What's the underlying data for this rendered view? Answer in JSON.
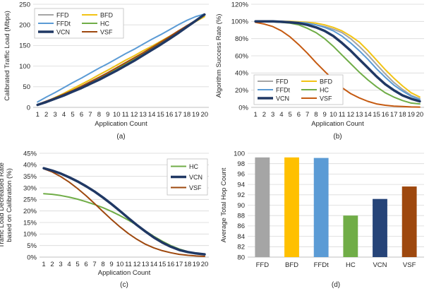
{
  "chart_data": [
    {
      "type": "line",
      "panel": "(a)",
      "xlabel": "Application Count",
      "ylabel": "Calibrated Traffic Load (Mbps)",
      "x": [
        1,
        2,
        3,
        4,
        5,
        6,
        7,
        8,
        9,
        10,
        11,
        12,
        13,
        14,
        15,
        16,
        17,
        18,
        19,
        20
      ],
      "ylim": [
        0,
        250
      ],
      "yticks": [
        "0",
        "50",
        "100",
        "150",
        "200",
        "250"
      ],
      "grid": "horizontal",
      "legend_position": "top-left",
      "series": [
        {
          "name": "FFD",
          "color": "#a5a5a5",
          "width": 2,
          "values": [
            5,
            14,
            24,
            34,
            45,
            56,
            67,
            79,
            90,
            102,
            114,
            125,
            137,
            148,
            160,
            172,
            184,
            196,
            208,
            220
          ]
        },
        {
          "name": "BFD",
          "color": "#f2c314",
          "width": 2,
          "values": [
            5,
            14,
            24,
            34,
            45,
            56,
            67,
            79,
            90,
            102,
            114,
            125,
            137,
            148,
            160,
            172,
            184,
            196,
            208,
            220
          ]
        },
        {
          "name": "FFDt",
          "color": "#5b9bd5",
          "width": 2,
          "values": [
            13,
            25,
            36,
            48,
            60,
            71,
            83,
            95,
            106,
            118,
            130,
            141,
            153,
            165,
            176,
            188,
            200,
            211,
            220,
            226
          ]
        },
        {
          "name": "HC",
          "color": "#70ad47",
          "width": 2,
          "values": [
            6,
            14,
            23,
            32,
            41,
            51,
            61,
            72,
            83,
            94,
            106,
            118,
            131,
            143,
            156,
            170,
            183,
            197,
            211,
            224
          ]
        },
        {
          "name": "VCN",
          "color": "#203864",
          "width": 3.5,
          "values": [
            6,
            13,
            21,
            29,
            38,
            47,
            57,
            67,
            78,
            89,
            101,
            113,
            126,
            139,
            152,
            166,
            180,
            195,
            210,
            225
          ]
        },
        {
          "name": "VSF",
          "color": "#9e480e",
          "width": 2,
          "values": [
            7,
            15,
            23,
            32,
            41,
            51,
            62,
            73,
            84,
            96,
            108,
            120,
            132,
            145,
            158,
            171,
            185,
            198,
            211,
            224
          ]
        }
      ]
    },
    {
      "type": "line",
      "panel": "(b)",
      "xlabel": "Application Count",
      "ylabel": "Algorithm Success Rate (%)",
      "x": [
        1,
        2,
        3,
        4,
        5,
        6,
        7,
        8,
        9,
        10,
        11,
        12,
        13,
        14,
        15,
        16,
        17,
        18,
        19,
        20
      ],
      "ylim": [
        0,
        120
      ],
      "yticks": [
        "0%",
        "20%",
        "40%",
        "60%",
        "80%",
        "100%",
        "120%"
      ],
      "grid": "horizontal",
      "legend_position": "bottom-left",
      "series": [
        {
          "name": "FFD",
          "color": "#a5a5a5",
          "width": 2,
          "values": [
            100,
            100,
            100,
            100,
            99.5,
            99,
            98,
            96,
            94,
            91,
            87,
            80,
            71,
            61,
            50,
            39,
            29,
            21,
            14,
            10
          ]
        },
        {
          "name": "BFD",
          "color": "#f2c314",
          "width": 2,
          "values": [
            100,
            100,
            100,
            100,
            100,
            99.5,
            99,
            98,
            96,
            93,
            89,
            83,
            76,
            66,
            55,
            44,
            34,
            25,
            17,
            12
          ]
        },
        {
          "name": "FFDt",
          "color": "#5b9bd5",
          "width": 2,
          "values": [
            100,
            100,
            100,
            100,
            99.5,
            99,
            98,
            96,
            93,
            89,
            83,
            75,
            66,
            56,
            45,
            35,
            26,
            19,
            13,
            9
          ]
        },
        {
          "name": "HC",
          "color": "#70ad47",
          "width": 2,
          "values": [
            100,
            100,
            99.5,
            99,
            98,
            96,
            92,
            87,
            80,
            71,
            61,
            51,
            41,
            32,
            24,
            17,
            12,
            8,
            5,
            4
          ]
        },
        {
          "name": "VCN",
          "color": "#203864",
          "width": 3.5,
          "values": [
            100,
            100,
            100,
            99.5,
            99,
            98,
            96,
            93,
            89,
            83,
            75,
            66,
            56,
            46,
            36,
            27,
            20,
            14,
            10,
            7
          ]
        },
        {
          "name": "VSF",
          "color": "#c55a11",
          "width": 2,
          "values": [
            99,
            97,
            94,
            89,
            82,
            73,
            63,
            52,
            42,
            32,
            23,
            16,
            11,
            7,
            4,
            2.5,
            1.5,
            1,
            0.5,
            0.3
          ]
        }
      ]
    },
    {
      "type": "line",
      "panel": "(c)",
      "xlabel": "Application Count",
      "ylabel": "Traffic Load Decreased Rate based on Calibration (%)",
      "x": [
        1,
        2,
        3,
        4,
        5,
        6,
        7,
        8,
        9,
        10,
        11,
        12,
        13,
        14,
        15,
        16,
        17,
        18,
        19,
        20
      ],
      "ylim": [
        0,
        45
      ],
      "yticks": [
        "0%",
        "5%",
        "10%",
        "15%",
        "20%",
        "25%",
        "30%",
        "35%",
        "40%",
        "45%"
      ],
      "grid": "horizontal",
      "legend_position": "top-right",
      "series": [
        {
          "name": "HC",
          "color": "#70ad47",
          "width": 2,
          "values": [
            27.5,
            27.2,
            26.7,
            26,
            25.1,
            24,
            22.8,
            21.4,
            19.8,
            18,
            16,
            13.8,
            11.4,
            9,
            6.9,
            5,
            3.5,
            2.4,
            1.6,
            1.2
          ]
        },
        {
          "name": "VCN",
          "color": "#203864",
          "width": 3.5,
          "values": [
            38.5,
            37.5,
            36.2,
            34.6,
            32.8,
            30.7,
            28.4,
            25.8,
            23,
            20,
            16.9,
            13.9,
            11.1,
            8.5,
            6.3,
            4.5,
            3.1,
            2.2,
            1.6,
            1.2
          ]
        },
        {
          "name": "VSF",
          "color": "#9e480e",
          "width": 2,
          "values": [
            38.3,
            36.9,
            34.9,
            32.5,
            29.7,
            26.6,
            23.2,
            19.7,
            16.3,
            13.1,
            10.2,
            7.7,
            5.6,
            4,
            2.8,
            1.9,
            1.2,
            0.8,
            0.5,
            0.3
          ]
        }
      ]
    },
    {
      "type": "bar",
      "panel": "(d)",
      "ylabel": "Average Total Hop Count",
      "categories": [
        "FFD",
        "BFD",
        "FFDt",
        "HC",
        "VCN",
        "VSF"
      ],
      "values": [
        99.2,
        99.2,
        99.1,
        88.0,
        91.2,
        93.6
      ],
      "colors": [
        "#a5a5a5",
        "#ffc000",
        "#5b9bd5",
        "#70ad47",
        "#264478",
        "#9e480e"
      ],
      "ylim": [
        80,
        100
      ],
      "yticks": [
        "80",
        "82",
        "84",
        "86",
        "88",
        "90",
        "92",
        "94",
        "96",
        "98",
        "100"
      ],
      "grid": "horizontal"
    }
  ]
}
